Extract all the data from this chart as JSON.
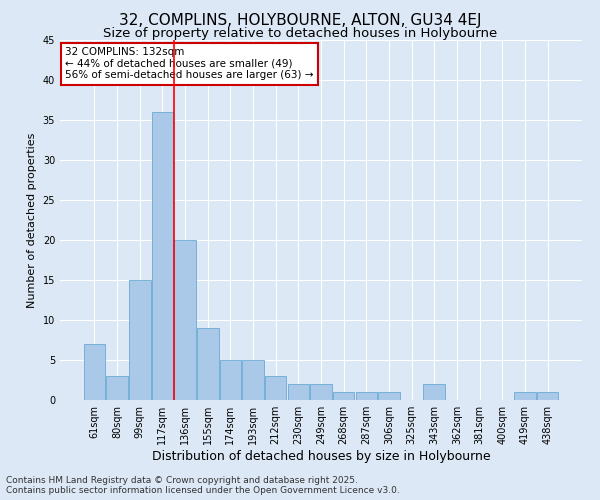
{
  "title1": "32, COMPLINS, HOLYBOURNE, ALTON, GU34 4EJ",
  "title2": "Size of property relative to detached houses in Holybourne",
  "xlabel": "Distribution of detached houses by size in Holybourne",
  "ylabel": "Number of detached properties",
  "categories": [
    "61sqm",
    "80sqm",
    "99sqm",
    "117sqm",
    "136sqm",
    "155sqm",
    "174sqm",
    "193sqm",
    "212sqm",
    "230sqm",
    "249sqm",
    "268sqm",
    "287sqm",
    "306sqm",
    "325sqm",
    "343sqm",
    "362sqm",
    "381sqm",
    "400sqm",
    "419sqm",
    "438sqm"
  ],
  "values": [
    7,
    3,
    15,
    36,
    20,
    9,
    5,
    5,
    3,
    2,
    2,
    1,
    1,
    1,
    0,
    2,
    0,
    0,
    0,
    1,
    1
  ],
  "bar_color": "#aac9e8",
  "bar_edge_color": "#6aaad4",
  "red_line_x": 3.5,
  "annotation_text": "32 COMPLINS: 132sqm\n← 44% of detached houses are smaller (49)\n56% of semi-detached houses are larger (63) →",
  "annotation_box_color": "#ffffff",
  "annotation_box_edge_color": "#cc0000",
  "ylim": [
    0,
    45
  ],
  "yticks": [
    0,
    5,
    10,
    15,
    20,
    25,
    30,
    35,
    40,
    45
  ],
  "background_color": "#dce8f5",
  "grid_color": "#ffffff",
  "footer_line1": "Contains HM Land Registry data © Crown copyright and database right 2025.",
  "footer_line2": "Contains public sector information licensed under the Open Government Licence v3.0.",
  "title1_fontsize": 11,
  "title2_fontsize": 9.5,
  "xlabel_fontsize": 9,
  "ylabel_fontsize": 8,
  "tick_fontsize": 7,
  "annotation_fontsize": 7.5,
  "footer_fontsize": 6.5
}
